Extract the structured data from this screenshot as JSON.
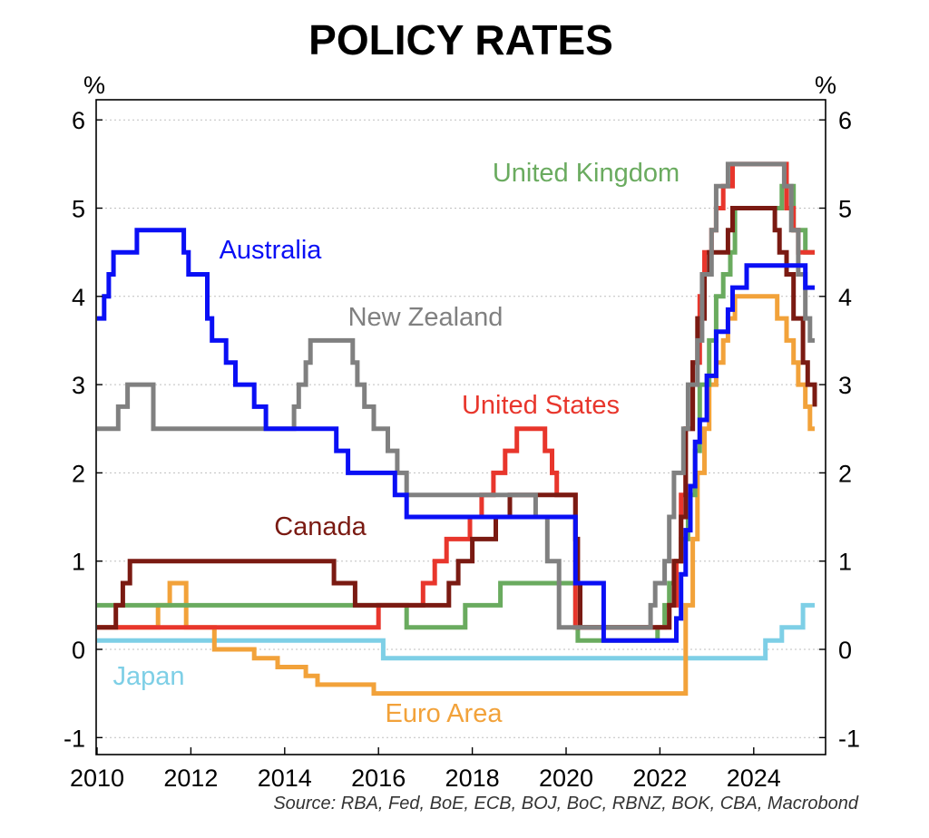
{
  "chart_data": {
    "type": "line",
    "title": "POLICY RATES",
    "ylabel_left": "%",
    "ylabel_right": "%",
    "source": "Source: RBA, Fed, BoE, ECB, BOJ, BoC, RBNZ, BOK, CBA, Macrobond",
    "xlim": [
      2010.0,
      2025.9
    ],
    "ylim": [
      -1.2,
      6.2
    ],
    "x_ticks": [
      2010,
      2012,
      2014,
      2016,
      2018,
      2020,
      2022,
      2024
    ],
    "x_tick_labels": [
      "2010",
      "2012",
      "2014",
      "2016",
      "2018",
      "2020",
      "2022",
      "2024"
    ],
    "y_ticks": [
      -1,
      0,
      1,
      2,
      3,
      4,
      5,
      6
    ],
    "y_tick_labels": [
      "-1",
      "0",
      "1",
      "2",
      "3",
      "4",
      "5",
      "6"
    ],
    "grid": true,
    "step": true,
    "series": [
      {
        "name": "Japan",
        "color": "#7ecfe6",
        "x": [
          2010.0,
          2016.1,
          2024.25,
          2024.6,
          2025.05,
          2025.3
        ],
        "y": [
          0.1,
          -0.1,
          0.1,
          0.25,
          0.5,
          0.5
        ]
      },
      {
        "name": "Euro Area",
        "color": "#f2a23a",
        "x": [
          2010.0,
          2011.3,
          2011.55,
          2011.9,
          2012.5,
          2013.35,
          2013.85,
          2014.45,
          2014.7,
          2015.9,
          2016.2,
          2019.7,
          2022.55,
          2022.7,
          2022.8,
          2022.95,
          2023.05,
          2023.2,
          2023.35,
          2023.45,
          2023.6,
          2023.7,
          2024.5,
          2024.7,
          2024.85,
          2024.95,
          2025.1,
          2025.2,
          2025.3
        ],
        "y": [
          0.25,
          0.5,
          0.75,
          0.25,
          0.0,
          -0.1,
          -0.2,
          -0.3,
          -0.4,
          -0.5,
          -0.5,
          -0.5,
          0.5,
          1.25,
          2.0,
          2.5,
          3.0,
          3.25,
          3.5,
          3.75,
          4.0,
          4.0,
          3.75,
          3.5,
          3.25,
          3.0,
          2.75,
          2.5,
          2.5
        ]
      },
      {
        "name": "United Kingdom",
        "color": "#6aab5f",
        "x": [
          2010.0,
          2016.6,
          2017.85,
          2018.6,
          2020.2,
          2020.25,
          2021.95,
          2022.1,
          2022.2,
          2022.35,
          2022.45,
          2022.6,
          2022.75,
          2022.85,
          2023.05,
          2023.2,
          2023.35,
          2023.5,
          2023.6,
          2024.6,
          2024.85,
          2025.1,
          2025.3
        ],
        "y": [
          0.5,
          0.25,
          0.5,
          0.75,
          0.25,
          0.1,
          0.25,
          0.5,
          0.75,
          1.0,
          1.25,
          1.75,
          2.25,
          3.0,
          3.5,
          4.0,
          4.25,
          4.5,
          5.0,
          5.25,
          4.75,
          4.5,
          4.5
        ]
      },
      {
        "name": "United States",
        "color": "#e8362c",
        "x": [
          2010.0,
          2016.0,
          2016.95,
          2017.2,
          2017.45,
          2017.95,
          2018.2,
          2018.45,
          2018.7,
          2018.95,
          2019.55,
          2019.7,
          2019.8,
          2020.2,
          2020.25,
          2022.2,
          2022.35,
          2022.45,
          2022.55,
          2022.7,
          2022.85,
          2022.95,
          2023.1,
          2023.2,
          2023.35,
          2023.55,
          2024.7,
          2024.85,
          2024.95,
          2025.3
        ],
        "y": [
          0.25,
          0.5,
          0.75,
          1.0,
          1.25,
          1.5,
          1.75,
          2.0,
          2.25,
          2.5,
          2.25,
          2.0,
          1.75,
          0.25,
          0.25,
          0.5,
          1.0,
          1.75,
          2.5,
          3.25,
          4.0,
          4.5,
          4.75,
          5.0,
          5.25,
          5.5,
          5.0,
          4.75,
          4.5,
          4.5
        ]
      },
      {
        "name": "Canada",
        "color": "#7a1a12",
        "x": [
          2010.0,
          2010.4,
          2010.55,
          2010.7,
          2015.05,
          2015.5,
          2017.5,
          2017.7,
          2018.0,
          2018.5,
          2018.8,
          2020.2,
          2020.25,
          2020.3,
          2022.2,
          2022.3,
          2022.45,
          2022.55,
          2022.7,
          2022.8,
          2022.95,
          2023.05,
          2023.45,
          2023.55,
          2024.45,
          2024.55,
          2024.7,
          2024.85,
          2025.05,
          2025.15,
          2025.3
        ],
        "y": [
          0.25,
          0.5,
          0.75,
          1.0,
          0.75,
          0.5,
          0.75,
          1.0,
          1.25,
          1.5,
          1.75,
          1.25,
          0.75,
          0.25,
          0.5,
          1.0,
          1.5,
          2.5,
          3.25,
          3.75,
          4.25,
          4.5,
          4.75,
          5.0,
          4.75,
          4.5,
          4.25,
          3.75,
          3.25,
          3.0,
          2.75
        ]
      },
      {
        "name": "New Zealand",
        "color": "#808080",
        "x": [
          2010.0,
          2010.45,
          2010.65,
          2011.2,
          2014.2,
          2014.3,
          2014.45,
          2014.55,
          2015.45,
          2015.55,
          2015.7,
          2015.9,
          2016.2,
          2016.4,
          2016.6,
          2016.85,
          2019.35,
          2019.6,
          2019.85,
          2020.2,
          2021.8,
          2021.9,
          2022.1,
          2022.2,
          2022.3,
          2022.5,
          2022.6,
          2022.8,
          2022.9,
          2023.1,
          2023.2,
          2023.45,
          2024.65,
          2024.8,
          2024.95,
          2025.1,
          2025.2,
          2025.3
        ],
        "y": [
          2.5,
          2.75,
          3.0,
          2.5,
          2.75,
          3.0,
          3.25,
          3.5,
          3.25,
          3.0,
          2.75,
          2.5,
          2.25,
          2.0,
          1.75,
          1.75,
          1.5,
          1.0,
          0.25,
          0.25,
          0.5,
          0.75,
          1.0,
          1.5,
          2.0,
          2.5,
          3.0,
          3.5,
          4.25,
          4.75,
          5.25,
          5.5,
          5.25,
          4.75,
          4.25,
          3.75,
          3.5,
          3.5
        ]
      },
      {
        "name": "Australia",
        "color": "#0a0ff5",
        "x": [
          2010.0,
          2010.15,
          2010.25,
          2010.35,
          2010.85,
          2011.85,
          2011.95,
          2012.35,
          2012.45,
          2012.75,
          2012.95,
          2013.35,
          2013.6,
          2015.1,
          2015.35,
          2016.35,
          2016.6,
          2020.2,
          2020.8,
          2022.35,
          2022.45,
          2022.55,
          2022.65,
          2022.75,
          2022.85,
          2023.0,
          2023.2,
          2023.45,
          2023.55,
          2023.85,
          2025.1,
          2025.3
        ],
        "y": [
          3.75,
          4.0,
          4.25,
          4.5,
          4.75,
          4.5,
          4.25,
          3.75,
          3.5,
          3.25,
          3.0,
          2.75,
          2.5,
          2.25,
          2.0,
          1.75,
          1.5,
          0.75,
          0.1,
          0.35,
          0.85,
          1.35,
          1.85,
          2.35,
          2.6,
          3.1,
          3.6,
          3.85,
          4.1,
          4.35,
          4.1,
          4.1
        ]
      }
    ],
    "series_labels": [
      "United Kingdom",
      "Australia",
      "New Zealand",
      "United States",
      "Canada",
      "Japan",
      "Euro Area"
    ]
  }
}
